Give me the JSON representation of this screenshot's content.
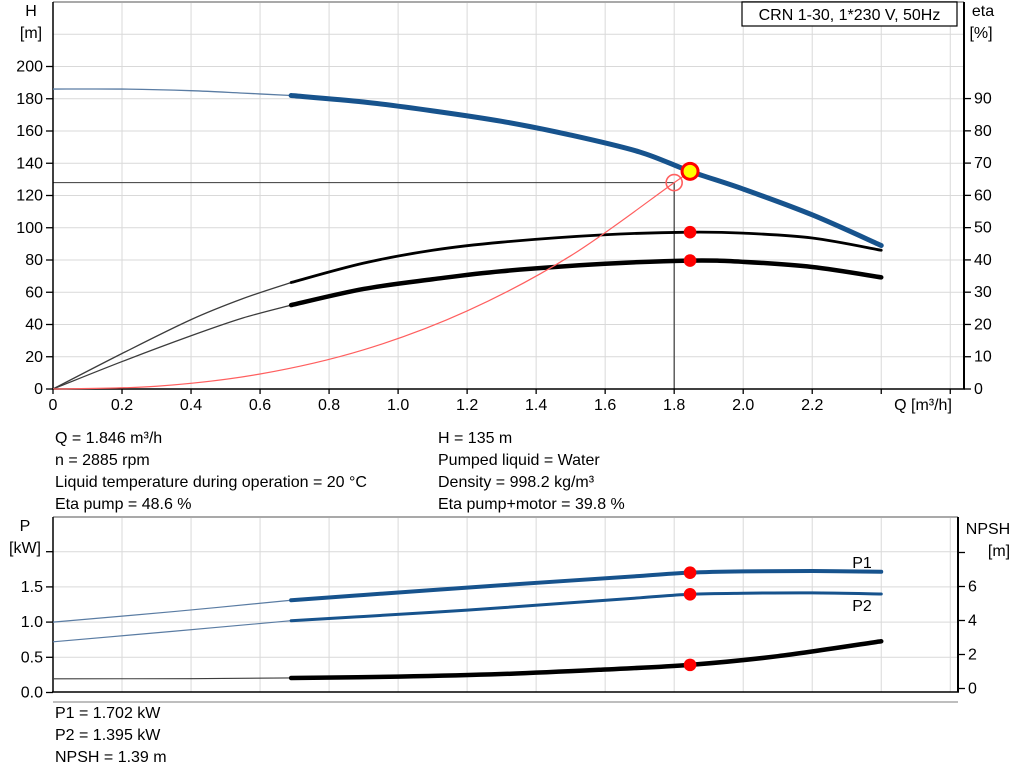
{
  "info_top": {
    "left": [
      "Q = 1.846 m³/h",
      "n = 2885 rpm",
      "Liquid temperature during operation = 20 °C",
      "Eta pump = 48.6 %"
    ],
    "right": [
      "H = 135 m",
      "Pumped liquid = Water",
      "Density = 998.2 kg/m³",
      "Eta pump+motor = 39.8 %"
    ]
  },
  "info_bottom": [
    "P1 = 1.702 kW",
    "P2 = 1.395 kW",
    "NPSH = 1.39 m"
  ],
  "colors": {
    "curve_blue": "#17538d",
    "curve_thin_blue": "#5a7ca3",
    "curve_black": "#000000",
    "curve_thin_black": "#3c3c3c",
    "system_red": "#ff5f5f",
    "marker_red": "#ff0000",
    "duty_yellow": "#ffff00",
    "grid": "#d9d9d9",
    "frame_gray": "#a9a9a9",
    "axis_black": "#000000",
    "crosshair": "#3a3a3a"
  },
  "chart_data": [
    {
      "id": "qh-eta",
      "type": "line",
      "title": "CRN 1-30, 1*230 V, 50Hz",
      "x_axis": {
        "label": "Q [m³/h]",
        "min": 0,
        "max": 2.64,
        "tick_values": [
          0,
          0.2,
          0.4,
          0.6,
          0.8,
          1.0,
          1.2,
          1.4,
          1.6,
          1.8,
          2.0,
          2.2,
          2.4,
          2.6
        ],
        "tick_labels": [
          "0",
          "0.2",
          "0.4",
          "0.6",
          "0.8",
          "1.0",
          "1.2",
          "1.4",
          "1.6",
          "1.8",
          "2.0",
          "2.2",
          "",
          ""
        ],
        "grid_values": [
          0.2,
          0.4,
          0.6,
          0.8,
          1.0,
          1.2,
          1.4,
          1.6,
          1.8,
          2.0,
          2.2,
          2.4,
          2.6
        ]
      },
      "y_left": {
        "label_lines": [
          "H",
          "[m]"
        ],
        "min": 0,
        "max": 240,
        "tick_values": [
          0,
          20,
          40,
          60,
          80,
          100,
          120,
          140,
          160,
          180,
          200
        ],
        "tick_labels": [
          "0",
          "20",
          "40",
          "60",
          "80",
          "100",
          "120",
          "140",
          "160",
          "180",
          "200"
        ],
        "grid_values": [
          20,
          40,
          60,
          80,
          100,
          120,
          140,
          160,
          180,
          200,
          220
        ]
      },
      "y_right": {
        "label_lines": [
          "eta",
          "[%]"
        ],
        "min": 0,
        "max": 120,
        "tick_values": [
          0,
          10,
          20,
          30,
          40,
          50,
          60,
          70,
          80,
          90
        ],
        "tick_labels": [
          "0",
          "10",
          "20",
          "30",
          "40",
          "50",
          "60",
          "70",
          "80",
          "90"
        ]
      },
      "series": [
        {
          "name": "pump-curve-QH",
          "axis": "left",
          "color_key": "curve_blue",
          "thin_color_key": "curve_thin_blue",
          "thin_width": 1.3,
          "thick_width": 5,
          "thick_from": 0.69,
          "points": [
            [
              0,
              186
            ],
            [
              0.2,
              186
            ],
            [
              0.4,
              185
            ],
            [
              0.55,
              183.5
            ],
            [
              0.69,
              182
            ],
            [
              0.9,
              178
            ],
            [
              1.1,
              172.5
            ],
            [
              1.3,
              166
            ],
            [
              1.5,
              157.5
            ],
            [
              1.7,
              147
            ],
            [
              1.846,
              135
            ],
            [
              2.0,
              124
            ],
            [
              2.2,
              108
            ],
            [
              2.4,
              89
            ]
          ]
        },
        {
          "name": "eta-pump",
          "axis": "right",
          "color_key": "curve_black",
          "thin_color_key": "curve_thin_black",
          "thin_width": 1.3,
          "thick_width": 2.8,
          "thick_from": 0.69,
          "points": [
            [
              0,
              0
            ],
            [
              0.2,
              11
            ],
            [
              0.4,
              21.5
            ],
            [
              0.55,
              28
            ],
            [
              0.69,
              33
            ],
            [
              0.9,
              39
            ],
            [
              1.1,
              43
            ],
            [
              1.3,
              45.5
            ],
            [
              1.6,
              47.8
            ],
            [
              1.846,
              48.6
            ],
            [
              2.0,
              48.3
            ],
            [
              2.2,
              46.8
            ],
            [
              2.4,
              43
            ]
          ]
        },
        {
          "name": "eta-pump-motor",
          "axis": "right",
          "color_key": "curve_black",
          "thin_color_key": "curve_thin_black",
          "thin_width": 1.3,
          "thick_width": 4.5,
          "thick_from": 0.69,
          "points": [
            [
              0,
              0
            ],
            [
              0.2,
              8.5
            ],
            [
              0.4,
              16.5
            ],
            [
              0.55,
              22
            ],
            [
              0.69,
              26
            ],
            [
              0.9,
              31
            ],
            [
              1.1,
              34
            ],
            [
              1.3,
              36.5
            ],
            [
              1.6,
              38.8
            ],
            [
              1.846,
              39.8
            ],
            [
              2.0,
              39.4
            ],
            [
              2.2,
              37.8
            ],
            [
              2.4,
              34.6
            ]
          ]
        },
        {
          "name": "system-curve",
          "axis": "left",
          "color_key": "system_red",
          "thin_width": 1.2,
          "points": [
            [
              0,
              0
            ],
            [
              0.3,
              1.7
            ],
            [
              0.6,
              9.3
            ],
            [
              0.9,
              24.3
            ],
            [
              1.2,
              48.4
            ],
            [
              1.5,
              82.6
            ],
            [
              1.8,
              128
            ],
            [
              1.852,
              135.4
            ]
          ]
        }
      ],
      "crosshair": {
        "q": 1.8,
        "h": 128
      },
      "markers": [
        {
          "name": "duty-point",
          "q": 1.846,
          "value": 135,
          "axis": "left",
          "style": "duty"
        },
        {
          "name": "requested-duty-point",
          "q": 1.8,
          "value": 128,
          "axis": "left",
          "style": "open-red"
        },
        {
          "name": "eta-pump-marker",
          "q": 1.846,
          "value": 48.6,
          "axis": "right",
          "style": "red-dot"
        },
        {
          "name": "eta-pump-motor-marker",
          "q": 1.846,
          "value": 39.8,
          "axis": "right",
          "style": "red-dot"
        }
      ]
    },
    {
      "id": "power-npsh",
      "type": "line",
      "x_axis": {
        "min": 0,
        "max": 2.623,
        "grid_values": [
          0.2,
          0.4,
          0.6,
          0.8,
          1.0,
          1.2,
          1.4,
          1.6,
          1.8,
          2.0,
          2.2,
          2.4,
          2.6
        ]
      },
      "y_left": {
        "label_lines": [
          "P",
          "[kW]"
        ],
        "min": 0,
        "max": 2.49,
        "tick_values": [
          0,
          0.5,
          1.0,
          1.5,
          2.0
        ],
        "tick_labels": [
          "0.0",
          "0.5",
          "1.0",
          "1.5",
          ""
        ],
        "grid_values": [
          0.5,
          1.0,
          1.5,
          2.0
        ]
      },
      "y_right": {
        "label_lines": [
          "NPSH",
          "[m]"
        ],
        "min": 0,
        "max": 10,
        "tick_values": [
          0,
          2,
          4,
          6,
          8
        ],
        "tick_labels": [
          "0",
          "2",
          "4",
          "6",
          ""
        ]
      },
      "series": [
        {
          "name": "P1-curve",
          "axis": "left",
          "color_key": "curve_blue",
          "thin_color_key": "curve_thin_blue",
          "thin_width": 1.2,
          "thick_width": 4,
          "thick_from": 0.69,
          "points": [
            [
              0,
              1.0
            ],
            [
              0.35,
              1.15
            ],
            [
              0.69,
              1.31
            ],
            [
              0.9,
              1.385
            ],
            [
              1.2,
              1.49
            ],
            [
              1.5,
              1.59
            ],
            [
              1.7,
              1.655
            ],
            [
              1.846,
              1.702
            ],
            [
              2.0,
              1.72
            ],
            [
              2.2,
              1.725
            ],
            [
              2.4,
              1.715
            ]
          ]
        },
        {
          "name": "P2-curve",
          "axis": "left",
          "color_key": "curve_blue",
          "thin_color_key": "curve_thin_blue",
          "thin_width": 1.2,
          "thick_width": 3,
          "thick_from": 0.69,
          "points": [
            [
              0,
              0.72
            ],
            [
              0.35,
              0.87
            ],
            [
              0.69,
              1.02
            ],
            [
              0.9,
              1.08
            ],
            [
              1.2,
              1.17
            ],
            [
              1.5,
              1.275
            ],
            [
              1.7,
              1.345
            ],
            [
              1.846,
              1.395
            ],
            [
              2.0,
              1.41
            ],
            [
              2.2,
              1.415
            ],
            [
              2.4,
              1.4
            ]
          ]
        },
        {
          "name": "NPSH-curve",
          "axis": "right",
          "color_key": "curve_black",
          "thin_color_key": "curve_thin_black",
          "thin_width": 1.1,
          "thick_width": 4.5,
          "thick_from": 0.69,
          "points": [
            [
              0,
              0.57
            ],
            [
              0.4,
              0.58
            ],
            [
              0.69,
              0.62
            ],
            [
              1.0,
              0.7
            ],
            [
              1.3,
              0.85
            ],
            [
              1.6,
              1.12
            ],
            [
              1.846,
              1.39
            ],
            [
              2.1,
              1.9
            ],
            [
              2.4,
              2.78
            ]
          ]
        }
      ],
      "series_labels": [
        {
          "text": "P1",
          "x": 862,
          "y": 568
        },
        {
          "text": "P2",
          "x": 862,
          "y": 611
        }
      ],
      "markers": [
        {
          "name": "p1-marker",
          "q": 1.846,
          "value": 1.702,
          "axis": "left",
          "style": "red-dot"
        },
        {
          "name": "p2-marker",
          "q": 1.846,
          "value": 1.395,
          "axis": "left",
          "style": "red-dot"
        },
        {
          "name": "npsh-marker",
          "q": 1.846,
          "value": 1.39,
          "axis": "right",
          "style": "red-dot"
        }
      ]
    }
  ]
}
